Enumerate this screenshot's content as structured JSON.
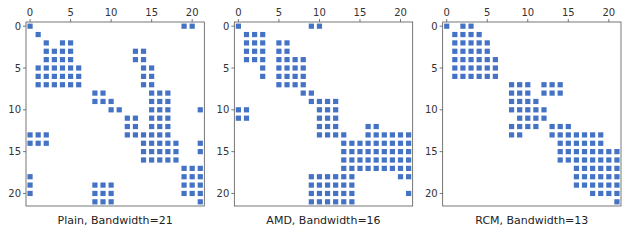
{
  "chart_data": [
    {
      "type": "scatter",
      "title": "Plain, Bandwidth=21",
      "color": "#4472C4",
      "marker": "square",
      "grid": false,
      "xlim": [
        -0.5,
        21.5
      ],
      "ylim": [
        21.5,
        -0.5
      ],
      "xticks": [
        0,
        5,
        10,
        15,
        20
      ],
      "yticks": [
        0,
        5,
        10,
        15,
        20
      ],
      "x": [
        0,
        19,
        20,
        1,
        2,
        4,
        5,
        2,
        3,
        4,
        5,
        13,
        14,
        2,
        3,
        4,
        5,
        13,
        14,
        1,
        2,
        3,
        4,
        5,
        6,
        14,
        15,
        1,
        2,
        3,
        4,
        5,
        6,
        14,
        15,
        1,
        2,
        3,
        4,
        5,
        6,
        14,
        15,
        8,
        9,
        15,
        16,
        17,
        8,
        9,
        10,
        15,
        16,
        17,
        10,
        11,
        15,
        16,
        17,
        21,
        12,
        13,
        15,
        16,
        17,
        12,
        13,
        15,
        16,
        17,
        0,
        1,
        2,
        12,
        13,
        14,
        15,
        16,
        17,
        0,
        1,
        2,
        14,
        15,
        16,
        17,
        18,
        21,
        14,
        15,
        16,
        17,
        18,
        21,
        14,
        15,
        16,
        17,
        18,
        19,
        20,
        21,
        0,
        19,
        20,
        21,
        0,
        8,
        9,
        10,
        19,
        20,
        21,
        0,
        8,
        9,
        10,
        19,
        20,
        21,
        8,
        9,
        10,
        21
      ],
      "values": [
        0,
        0,
        0,
        1,
        2,
        2,
        2,
        3,
        3,
        3,
        3,
        3,
        3,
        4,
        4,
        4,
        4,
        4,
        4,
        5,
        5,
        5,
        5,
        5,
        5,
        5,
        5,
        6,
        6,
        6,
        6,
        6,
        6,
        6,
        6,
        7,
        7,
        7,
        7,
        7,
        7,
        7,
        7,
        8,
        8,
        8,
        8,
        8,
        9,
        9,
        9,
        9,
        9,
        9,
        10,
        10,
        10,
        10,
        10,
        10,
        11,
        11,
        11,
        11,
        11,
        12,
        12,
        12,
        12,
        12,
        13,
        13,
        13,
        13,
        13,
        13,
        13,
        13,
        13,
        14,
        14,
        14,
        14,
        14,
        14,
        14,
        14,
        14,
        15,
        15,
        15,
        15,
        15,
        15,
        16,
        16,
        16,
        16,
        16,
        17,
        17,
        17,
        18,
        18,
        18,
        18,
        19,
        19,
        19,
        19,
        19,
        19,
        19,
        20,
        20,
        20,
        20,
        20,
        20,
        20,
        21,
        21,
        21,
        21
      ]
    },
    {
      "type": "scatter",
      "title": "AMD, Bandwidth=16",
      "color": "#4472C4",
      "marker": "square",
      "grid": false,
      "xlim": [
        -0.5,
        21.5
      ],
      "ylim": [
        21.5,
        -0.5
      ],
      "xticks": [
        0,
        5,
        10,
        15,
        20
      ],
      "yticks": [
        0,
        5,
        10,
        15,
        20
      ],
      "x": [
        0,
        9,
        10,
        1,
        2,
        3,
        1,
        2,
        3,
        5,
        6,
        1,
        2,
        3,
        5,
        6,
        1,
        2,
        3,
        5,
        6,
        7,
        8,
        3,
        5,
        6,
        7,
        8,
        3,
        5,
        6,
        7,
        8,
        5,
        6,
        7,
        8,
        8,
        9,
        9,
        10,
        11,
        12,
        0,
        1,
        10,
        11,
        12,
        0,
        1,
        10,
        11,
        12,
        10,
        11,
        12,
        16,
        17,
        10,
        11,
        12,
        13,
        16,
        17,
        18,
        19,
        20,
        21,
        13,
        14,
        15,
        16,
        17,
        18,
        19,
        20,
        21,
        13,
        14,
        15,
        16,
        17,
        18,
        19,
        20,
        21,
        13,
        14,
        15,
        16,
        17,
        18,
        19,
        20,
        21,
        13,
        14,
        15,
        16,
        17,
        18,
        19,
        20,
        21,
        9,
        10,
        11,
        12,
        13,
        14,
        20,
        21,
        9,
        10,
        11,
        12,
        13,
        14,
        9,
        10,
        11,
        12,
        13,
        14,
        21,
        9,
        10,
        11,
        12,
        13,
        14
      ],
      "values": [
        0,
        0,
        0,
        1,
        1,
        1,
        2,
        2,
        2,
        2,
        2,
        3,
        3,
        3,
        3,
        3,
        4,
        4,
        4,
        4,
        4,
        4,
        4,
        5,
        5,
        5,
        5,
        5,
        6,
        6,
        6,
        6,
        6,
        7,
        7,
        7,
        7,
        8,
        8,
        9,
        9,
        9,
        9,
        10,
        10,
        10,
        10,
        10,
        11,
        11,
        11,
        11,
        11,
        12,
        12,
        12,
        12,
        12,
        13,
        13,
        13,
        13,
        13,
        13,
        13,
        13,
        13,
        13,
        14,
        14,
        14,
        14,
        14,
        14,
        14,
        14,
        14,
        15,
        15,
        15,
        15,
        15,
        15,
        15,
        15,
        15,
        16,
        16,
        16,
        16,
        16,
        16,
        16,
        16,
        16,
        17,
        17,
        17,
        17,
        17,
        17,
        17,
        17,
        17,
        18,
        18,
        18,
        18,
        18,
        18,
        18,
        18,
        19,
        19,
        19,
        19,
        19,
        19,
        20,
        20,
        20,
        20,
        20,
        20,
        20,
        21,
        21,
        21,
        21,
        21,
        21
      ]
    },
    {
      "type": "scatter",
      "title": "RCM, Bandwidth=13",
      "color": "#4472C4",
      "marker": "square",
      "grid": false,
      "xlim": [
        -0.5,
        21.5
      ],
      "ylim": [
        21.5,
        -0.5
      ],
      "xticks": [
        0,
        5,
        10,
        15,
        20
      ],
      "yticks": [
        0,
        5,
        10,
        15,
        20
      ],
      "x": [
        0,
        2,
        3,
        1,
        2,
        3,
        4,
        1,
        2,
        3,
        4,
        5,
        1,
        2,
        3,
        4,
        5,
        1,
        2,
        3,
        4,
        5,
        6,
        1,
        2,
        3,
        4,
        5,
        6,
        1,
        2,
        3,
        4,
        5,
        6,
        8,
        9,
        10,
        12,
        13,
        14,
        8,
        9,
        10,
        12,
        13,
        14,
        8,
        9,
        10,
        11,
        8,
        9,
        10,
        11,
        12,
        9,
        10,
        11,
        12,
        8,
        9,
        10,
        11,
        13,
        14,
        15,
        8,
        9,
        13,
        14,
        15,
        16,
        17,
        18,
        19,
        14,
        15,
        16,
        17,
        18,
        19,
        14,
        15,
        16,
        17,
        18,
        19,
        20,
        21,
        14,
        15,
        16,
        17,
        18,
        19,
        20,
        21,
        16,
        17,
        18,
        19,
        20,
        21,
        16,
        17,
        18,
        19,
        20,
        21,
        16,
        17,
        18,
        19,
        20,
        21,
        18,
        19,
        20,
        21,
        21
      ],
      "values": [
        0,
        0,
        0,
        1,
        1,
        1,
        1,
        2,
        2,
        2,
        2,
        2,
        3,
        3,
        3,
        3,
        3,
        4,
        4,
        4,
        4,
        4,
        4,
        5,
        5,
        5,
        5,
        5,
        5,
        6,
        6,
        6,
        6,
        6,
        6,
        7,
        7,
        7,
        7,
        7,
        7,
        8,
        8,
        8,
        8,
        8,
        8,
        9,
        9,
        9,
        9,
        10,
        10,
        10,
        10,
        10,
        11,
        11,
        11,
        11,
        12,
        12,
        12,
        12,
        12,
        12,
        12,
        13,
        13,
        13,
        13,
        13,
        13,
        13,
        13,
        13,
        14,
        14,
        14,
        14,
        14,
        14,
        15,
        15,
        15,
        15,
        15,
        15,
        15,
        15,
        16,
        16,
        16,
        16,
        16,
        16,
        16,
        16,
        17,
        17,
        17,
        17,
        17,
        17,
        18,
        18,
        18,
        18,
        18,
        18,
        19,
        19,
        19,
        19,
        19,
        19,
        20,
        20,
        20,
        20,
        21
      ]
    }
  ]
}
